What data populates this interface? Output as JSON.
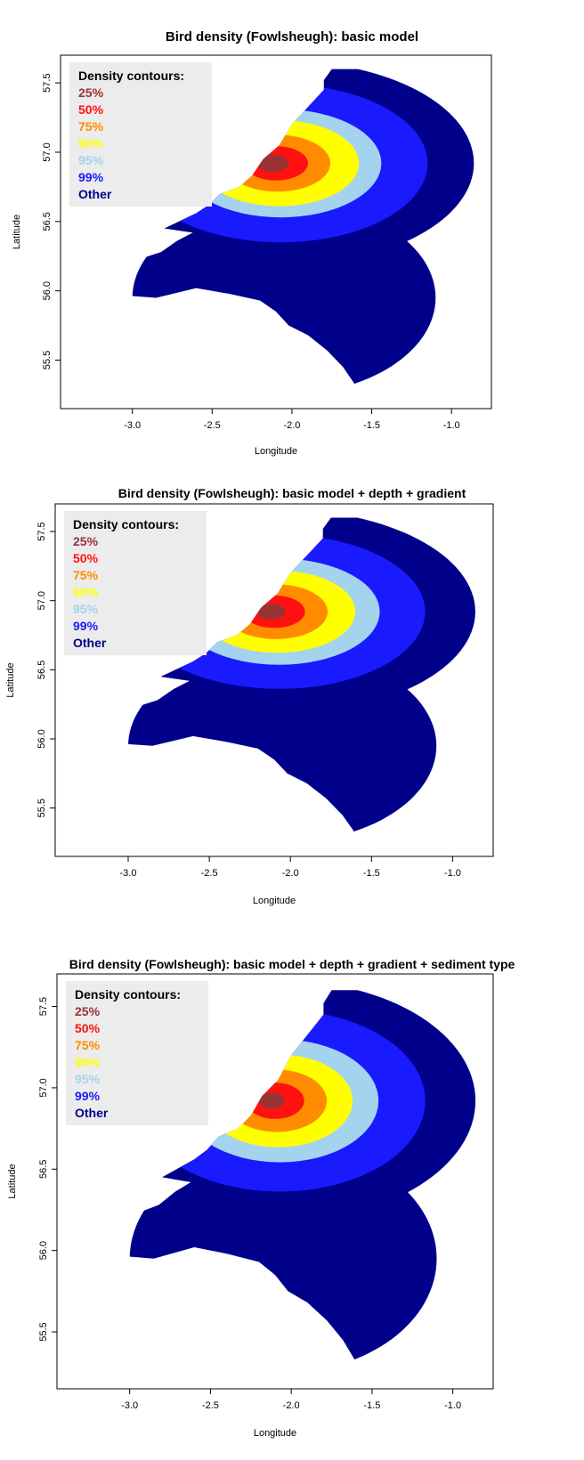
{
  "chart_data": [
    {
      "type": "heatmap",
      "title": "Bird density (Fowlsheugh): basic model",
      "xlabel": "Longitude",
      "ylabel": "Latitude",
      "xlim": [
        -3.45,
        -0.75
      ],
      "ylim": [
        55.15,
        57.7
      ],
      "xticks": [
        -3.0,
        -2.5,
        -2.0,
        -1.5,
        -1.0
      ],
      "xtick_labels": [
        "-3.0",
        "-2.5",
        "-2.0",
        "-1.5",
        "-1.0"
      ],
      "yticks": [
        55.5,
        56.0,
        56.5,
        57.0,
        57.5
      ],
      "ytick_labels": [
        "55.5",
        "56.0",
        "56.5",
        "57.0",
        "57.5"
      ],
      "legend": {
        "title": "Density contours:",
        "placement": "top-left",
        "entries": [
          {
            "label": "25%",
            "color": "#993333"
          },
          {
            "label": "50%",
            "color": "#ff1111"
          },
          {
            "label": "75%",
            "color": "#ff8c00"
          },
          {
            "label": "90%",
            "color": "#ffff00"
          },
          {
            "label": "95%",
            "color": "#a4d3ee"
          },
          {
            "label": "99%",
            "color": "#1a1aff"
          },
          {
            "label": "Other",
            "color": "#00008b"
          }
        ]
      },
      "contours": [
        {
          "level": "Other",
          "center": [
            -2.05,
            56.92
          ],
          "radius": 1.19
        },
        {
          "level": "99%",
          "center": [
            -2.07,
            56.92
          ],
          "radius": 0.92
        },
        {
          "level": "95%",
          "center": [
            -2.07,
            56.92
          ],
          "radius": 0.63
        },
        {
          "level": "90%",
          "center": [
            -2.08,
            56.92
          ],
          "radius": 0.5
        },
        {
          "level": "75%",
          "center": [
            -2.09,
            56.92
          ],
          "radius": 0.33
        },
        {
          "level": "50%",
          "center": [
            -2.1,
            56.92
          ],
          "radius": 0.2
        },
        {
          "level": "25%",
          "center": [
            -2.12,
            56.92
          ],
          "radius": 0.1
        }
      ]
    },
    {
      "type": "heatmap",
      "title": "Bird density (Fowlsheugh): basic model + depth + gradient",
      "xlabel": "Longitude",
      "ylabel": "Latitude",
      "xlim": [
        -3.45,
        -0.75
      ],
      "ylim": [
        55.15,
        57.7
      ],
      "xticks": [
        -3.0,
        -2.5,
        -2.0,
        -1.5,
        -1.0
      ],
      "xtick_labels": [
        "-3.0",
        "-2.5",
        "-2.0",
        "-1.5",
        "-1.0"
      ],
      "yticks": [
        55.5,
        56.0,
        56.5,
        57.0,
        57.5
      ],
      "ytick_labels": [
        "55.5",
        "56.0",
        "56.5",
        "57.0",
        "57.5"
      ],
      "legend": {
        "title": "Density contours:",
        "placement": "top-left",
        "entries": [
          {
            "label": "25%",
            "color": "#993333"
          },
          {
            "label": "50%",
            "color": "#ff1111"
          },
          {
            "label": "75%",
            "color": "#ff8c00"
          },
          {
            "label": "90%",
            "color": "#ffff00"
          },
          {
            "label": "95%",
            "color": "#a4d3ee"
          },
          {
            "label": "99%",
            "color": "#1a1aff"
          },
          {
            "label": "Other",
            "color": "#00008b"
          }
        ]
      },
      "contours": [
        {
          "level": "Other",
          "center": [
            -2.05,
            56.92
          ],
          "radius": 1.19
        },
        {
          "level": "99%",
          "center": [
            -2.07,
            56.92
          ],
          "radius": 0.9
        },
        {
          "level": "95%",
          "center": [
            -2.07,
            56.92
          ],
          "radius": 0.62
        },
        {
          "level": "90%",
          "center": [
            -2.08,
            56.92
          ],
          "radius": 0.48
        },
        {
          "level": "75%",
          "center": [
            -2.09,
            56.92
          ],
          "radius": 0.32
        },
        {
          "level": "50%",
          "center": [
            -2.1,
            56.92
          ],
          "radius": 0.19
        },
        {
          "level": "25%",
          "center": [
            -2.12,
            56.92
          ],
          "radius": 0.09
        }
      ]
    },
    {
      "type": "heatmap",
      "title": "Bird density (Fowlsheugh): basic model + depth + gradient + sediment type",
      "xlabel": "Longitude",
      "ylabel": "Latitude",
      "xlim": [
        -3.45,
        -0.75
      ],
      "ylim": [
        55.15,
        57.7
      ],
      "xticks": [
        -3.0,
        -2.5,
        -2.0,
        -1.5,
        -1.0
      ],
      "xtick_labels": [
        "-3.0",
        "-2.5",
        "-2.0",
        "-1.5",
        "-1.0"
      ],
      "yticks": [
        55.5,
        56.0,
        56.5,
        57.0,
        57.5
      ],
      "ytick_labels": [
        "55.5",
        "56.0",
        "56.5",
        "57.0",
        "57.5"
      ],
      "legend": {
        "title": "Density contours:",
        "placement": "top-left",
        "entries": [
          {
            "label": "25%",
            "color": "#993333"
          },
          {
            "label": "50%",
            "color": "#ff1111"
          },
          {
            "label": "75%",
            "color": "#ff8c00"
          },
          {
            "label": "90%",
            "color": "#ffff00"
          },
          {
            "label": "95%",
            "color": "#a4d3ee"
          },
          {
            "label": "99%",
            "color": "#1a1aff"
          },
          {
            "label": "Other",
            "color": "#00008b"
          }
        ]
      },
      "contours": [
        {
          "level": "Other",
          "center": [
            -2.05,
            56.92
          ],
          "radius": 1.19
        },
        {
          "level": "99%",
          "center": [
            -2.07,
            56.92
          ],
          "radius": 0.9
        },
        {
          "level": "95%",
          "center": [
            -2.07,
            56.92
          ],
          "radius": 0.61
        },
        {
          "level": "90%",
          "center": [
            -2.08,
            56.92
          ],
          "radius": 0.46
        },
        {
          "level": "75%",
          "center": [
            -2.09,
            56.92
          ],
          "radius": 0.31
        },
        {
          "level": "50%",
          "center": [
            -2.1,
            56.92
          ],
          "radius": 0.18
        },
        {
          "level": "25%",
          "center": [
            -2.12,
            56.92
          ],
          "radius": 0.08
        }
      ]
    }
  ]
}
